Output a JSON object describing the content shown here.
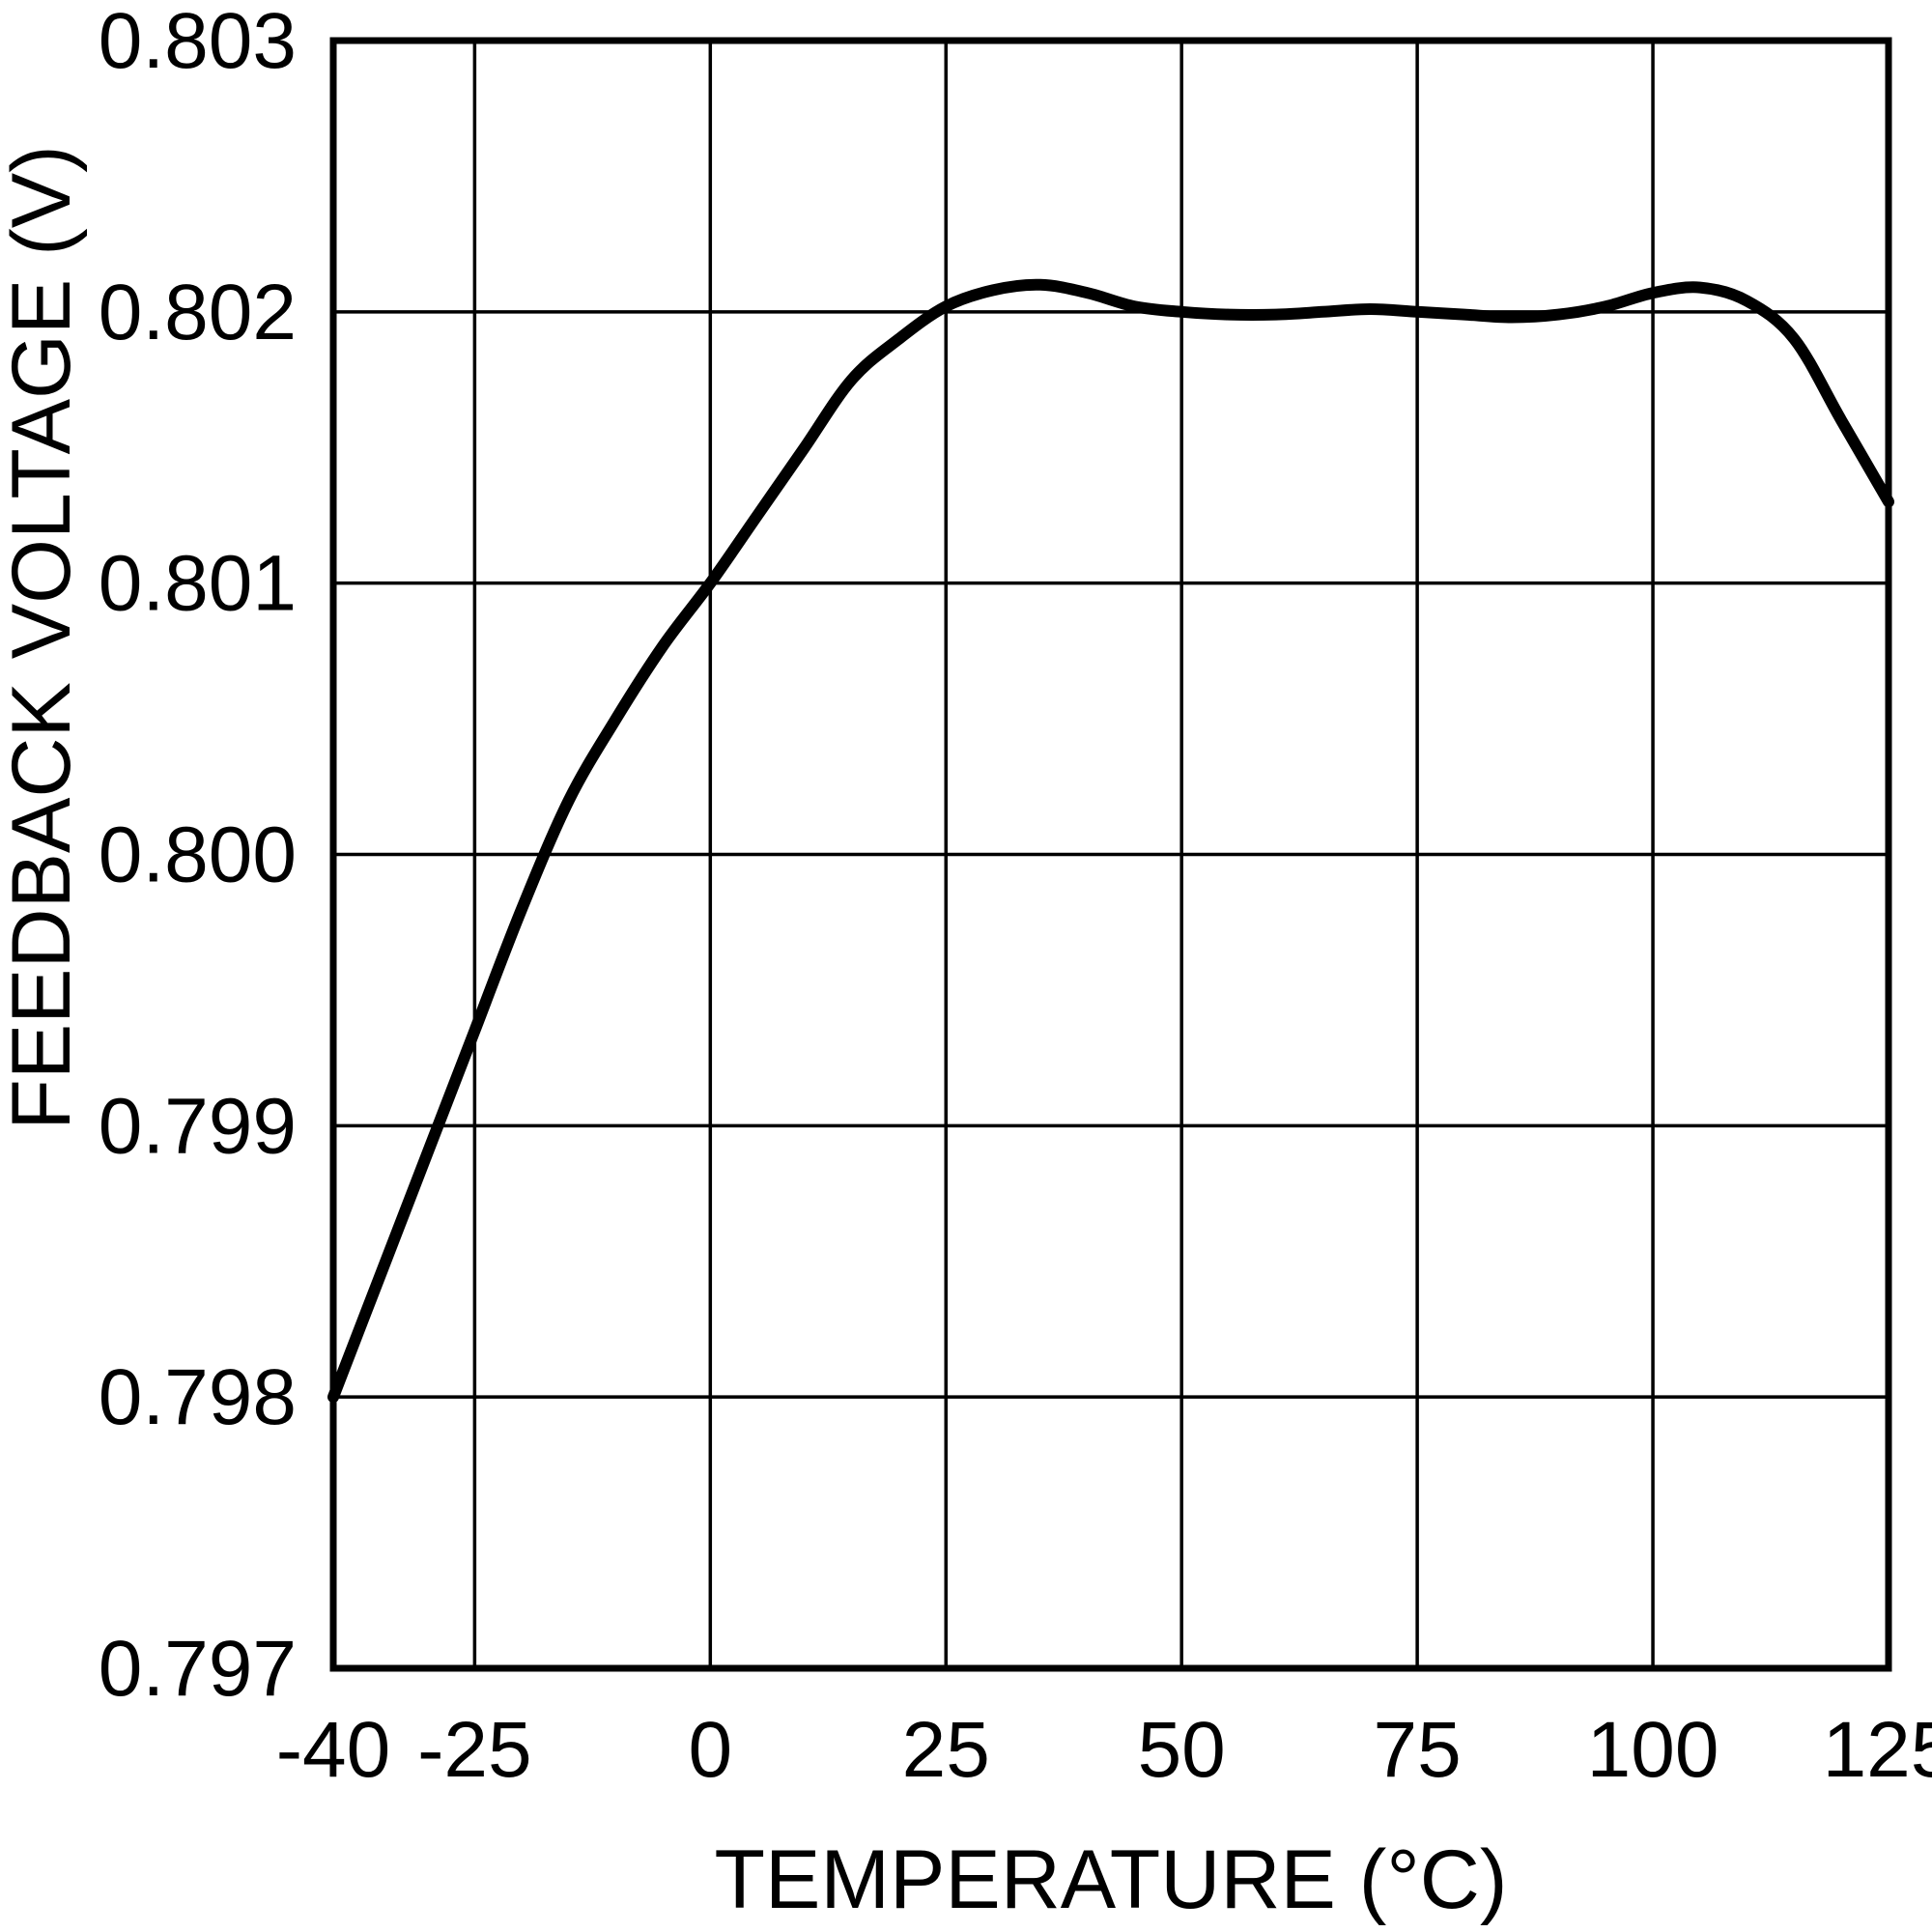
{
  "chart_data": {
    "type": "line",
    "title": "",
    "xlabel": "TEMPERATURE (°C)",
    "ylabel": "FEEDBACK VOLTAGE (V)",
    "xlim": [
      -40,
      125
    ],
    "ylim": [
      0.797,
      0.803
    ],
    "xticks": [
      -40,
      -25,
      0,
      25,
      50,
      75,
      100,
      125
    ],
    "xtick_labels": [
      "-40",
      "-25",
      "0",
      "25",
      "50",
      "75",
      "100",
      "125"
    ],
    "yticks": [
      0.797,
      0.798,
      0.799,
      0.8,
      0.801,
      0.802,
      0.803
    ],
    "ytick_labels": [
      "0.797",
      "0.798",
      "0.799",
      "0.800",
      "0.801",
      "0.802",
      "0.803"
    ],
    "grid": true,
    "legend": "none",
    "line_color": "#000000",
    "background_color": "#ffffff",
    "series": [
      {
        "name": "Feedback Voltage",
        "points": [
          [
            -40,
            0.798
          ],
          [
            -35,
            0.79845
          ],
          [
            -30,
            0.7989
          ],
          [
            -25,
            0.79935
          ],
          [
            -20,
            0.7998
          ],
          [
            -15,
            0.8002
          ],
          [
            -10,
            0.8005
          ],
          [
            -5,
            0.80077
          ],
          [
            0,
            0.801
          ],
          [
            5,
            0.80125
          ],
          [
            10,
            0.8015
          ],
          [
            15,
            0.80175
          ],
          [
            20,
            0.8019
          ],
          [
            25,
            0.80202
          ],
          [
            30,
            0.80208
          ],
          [
            35,
            0.8021
          ],
          [
            40,
            0.80207
          ],
          [
            45,
            0.80202
          ],
          [
            50,
            0.802
          ],
          [
            55,
            0.80199
          ],
          [
            60,
            0.80199
          ],
          [
            65,
            0.802
          ],
          [
            70,
            0.80201
          ],
          [
            75,
            0.802
          ],
          [
            80,
            0.80199
          ],
          [
            85,
            0.80198
          ],
          [
            90,
            0.80199
          ],
          [
            95,
            0.80202
          ],
          [
            100,
            0.80207
          ],
          [
            105,
            0.80209
          ],
          [
            110,
            0.80204
          ],
          [
            115,
            0.8019
          ],
          [
            120,
            0.8016
          ],
          [
            125,
            0.8013
          ]
        ]
      }
    ]
  }
}
